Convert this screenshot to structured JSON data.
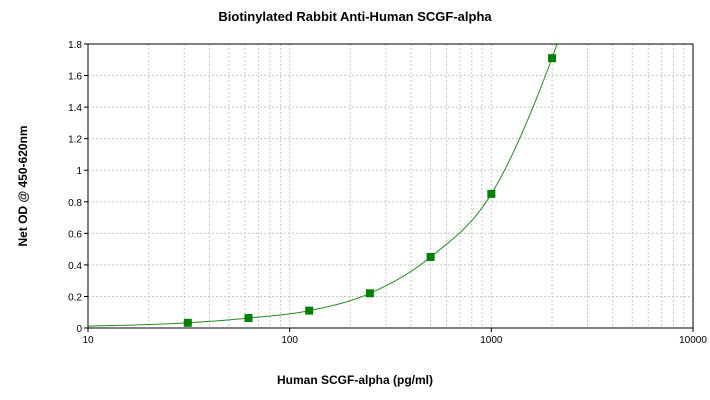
{
  "chart_data": {
    "type": "scatter",
    "title": "Biotinylated Rabbit Anti-Human SCGF-alpha",
    "xlabel": "Human SCGF-alpha (pg/ml)",
    "ylabel": "Net OD @ 450-620nm",
    "x_scale": "log",
    "xlim": [
      10,
      10000
    ],
    "ylim": [
      0,
      1.8
    ],
    "x_ticks": [
      10,
      100,
      1000,
      10000
    ],
    "x_tick_labels": [
      "10",
      "100",
      "1000",
      "10000"
    ],
    "y_ticks": [
      0,
      0.2,
      0.4,
      0.6,
      0.8,
      1.0,
      1.2,
      1.4,
      1.6,
      1.8
    ],
    "y_tick_labels": [
      "0",
      "0.2",
      "0.4",
      "0.6",
      "0.8",
      "1",
      "1.2",
      "1.4",
      "1.6",
      "1.8"
    ],
    "grid": true,
    "series": [
      {
        "type": "scatter",
        "x": [
          31.25,
          62.5,
          125,
          250,
          500,
          1000,
          2000
        ],
        "y": [
          0.033,
          0.063,
          0.11,
          0.22,
          0.45,
          0.85,
          1.71
        ]
      }
    ],
    "fit_curve": {
      "type": "line",
      "x": [
        10,
        20,
        31.25,
        62.5,
        125,
        250,
        500,
        1000,
        2000,
        2300
      ],
      "y": [
        0.012,
        0.022,
        0.033,
        0.063,
        0.11,
        0.22,
        0.45,
        0.85,
        1.71,
        1.95
      ]
    },
    "colors": {
      "series": "#008000",
      "curve": "#228b22",
      "grid": "#c8c8c8",
      "axis": "#000000"
    }
  }
}
